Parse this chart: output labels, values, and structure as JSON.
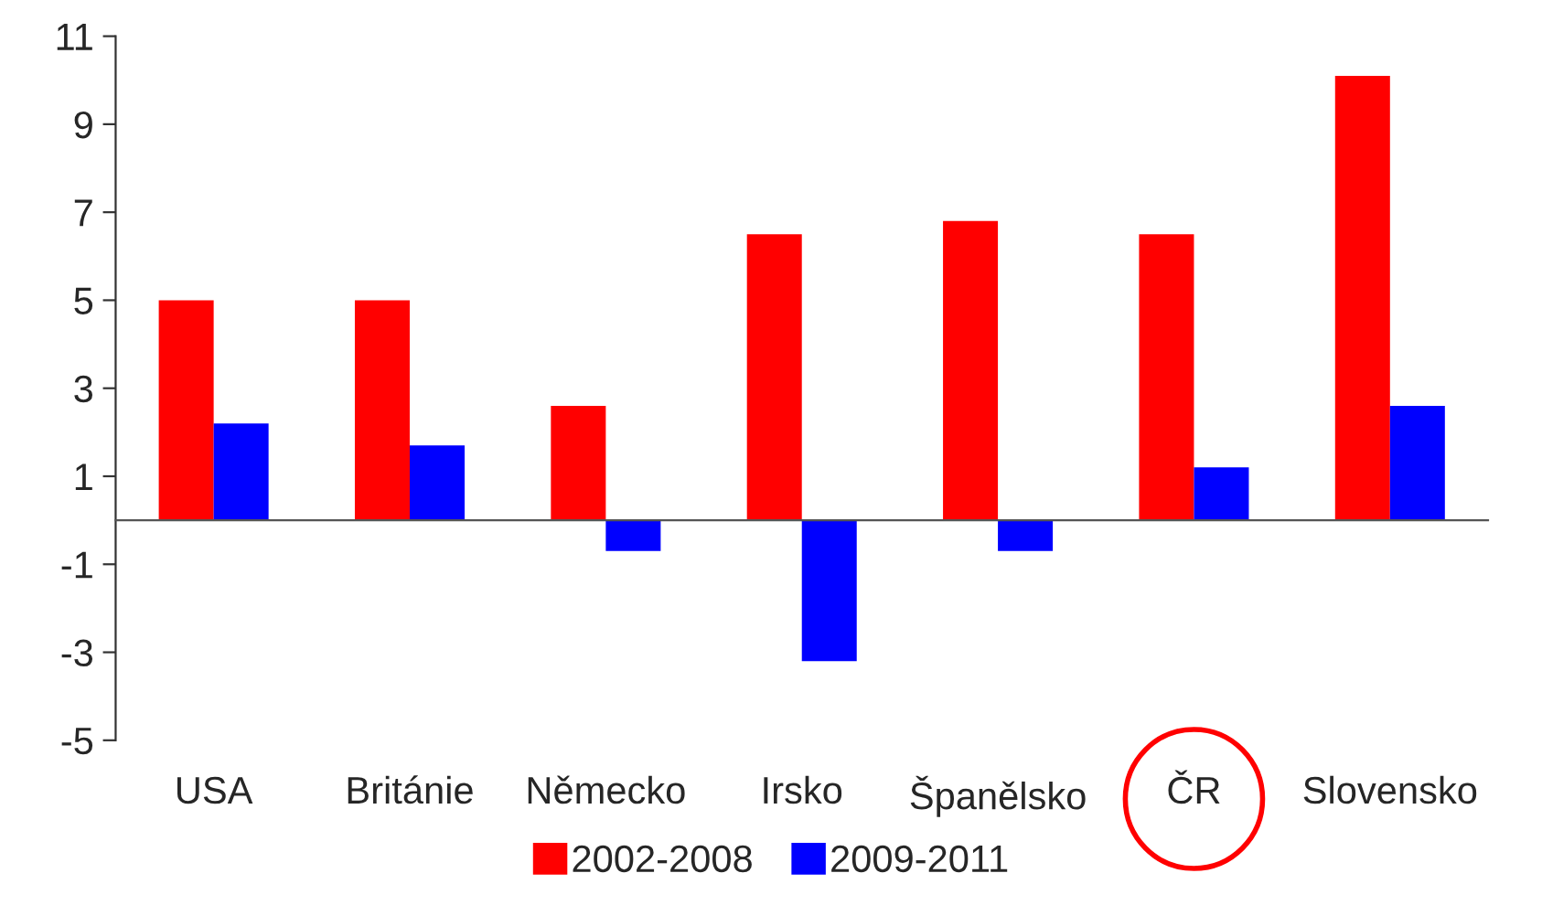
{
  "chart_data": {
    "type": "bar",
    "categories": [
      "USA",
      "Británie",
      "Německo",
      "Irsko",
      "Španělsko",
      "ČR",
      "Slovensko"
    ],
    "series": [
      {
        "name": "2002-2008",
        "color": "#ff0000",
        "values": [
          5.0,
          5.0,
          2.6,
          6.5,
          6.8,
          6.5,
          10.1
        ]
      },
      {
        "name": "2009-2011",
        "color": "#0000ff",
        "values": [
          2.2,
          1.7,
          -0.7,
          -3.2,
          -0.7,
          1.2,
          2.6
        ]
      }
    ],
    "ylim": [
      -5,
      11
    ],
    "yticks": [
      -5,
      -3,
      -1,
      1,
      3,
      5,
      7,
      9,
      11
    ],
    "grid": false,
    "legend": "bottom"
  }
}
